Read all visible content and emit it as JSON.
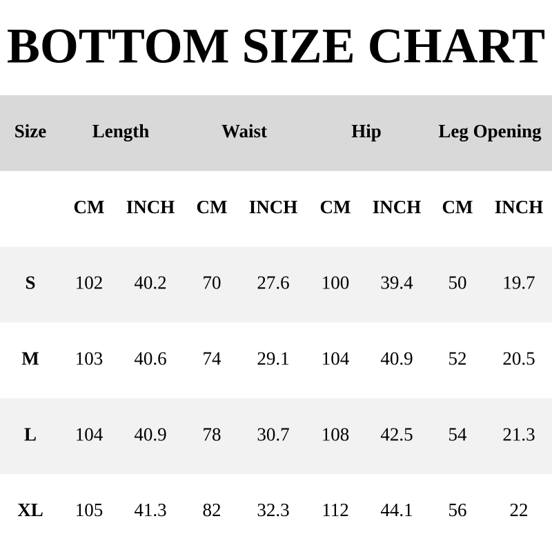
{
  "header": {
    "title": "BOTTOM SIZE CHART"
  },
  "table": {
    "headers": [
      "Size",
      "Length",
      "Waist",
      "Hip",
      "Leg Opening"
    ],
    "units": [
      "CM",
      "INCH",
      "CM",
      "INCH",
      "CM",
      "INCH",
      "CM",
      "INCH"
    ],
    "rows": [
      [
        "S",
        "102",
        "40.2",
        "70",
        "27.6",
        "100",
        "39.4",
        "50",
        "19.7"
      ],
      [
        "M",
        "103",
        "40.6",
        "74",
        "29.1",
        "104",
        "40.9",
        "52",
        "20.5"
      ],
      [
        "L",
        "104",
        "40.9",
        "78",
        "30.7",
        "108",
        "42.5",
        "54",
        "21.3"
      ],
      [
        "XL",
        "105",
        "41.3",
        "82",
        "32.3",
        "112",
        "44.1",
        "56",
        "22"
      ]
    ]
  }
}
